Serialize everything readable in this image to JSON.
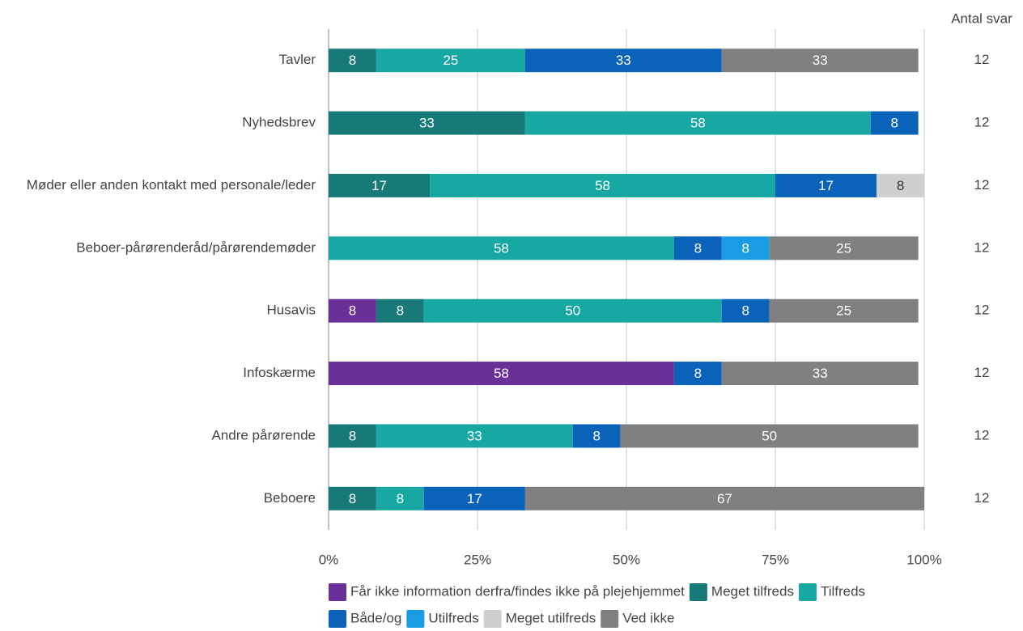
{
  "chart_data": {
    "type": "stacked_barh",
    "categories": [
      "Tavler",
      "Nyhedsbrev",
      "Møder eller anden kontakt med personale/leder",
      "Beboer-pårørenderåd/pårørendemøder",
      "Husavis",
      "Infoskærme",
      "Andre pårørende",
      "Beboere"
    ],
    "series": [
      {
        "name": "Får ikke information derfra/findes ikke på plejehjemmet",
        "color": "#6b2f98",
        "label_color": "#ffffff",
        "values": [
          null,
          null,
          null,
          null,
          8,
          58,
          null,
          null
        ]
      },
      {
        "name": "Meget tilfreds",
        "color": "#177a78",
        "label_color": "#ffffff",
        "values": [
          8,
          33,
          17,
          null,
          8,
          null,
          8,
          8
        ]
      },
      {
        "name": "Tilfreds",
        "color": "#17a8a3",
        "label_color": "#ffffff",
        "values": [
          25,
          58,
          58,
          58,
          50,
          null,
          33,
          8
        ]
      },
      {
        "name": "Både/og",
        "color": "#0b63b9",
        "label_color": "#ffffff",
        "values": [
          33,
          8,
          17,
          8,
          8,
          8,
          8,
          17
        ]
      },
      {
        "name": "Utilfreds",
        "color": "#1a9ce2",
        "label_color": "#ffffff",
        "values": [
          null,
          null,
          null,
          8,
          null,
          null,
          null,
          null
        ]
      },
      {
        "name": "Meget utilfreds",
        "color": "#cfcfcf",
        "label_color": "#333333",
        "values": [
          null,
          null,
          8,
          null,
          null,
          null,
          null,
          null
        ]
      },
      {
        "name": "Ved ikke",
        "color": "#808080",
        "label_color": "#ffffff",
        "values": [
          33,
          null,
          null,
          25,
          25,
          33,
          50,
          67
        ]
      }
    ],
    "xlim": [
      0,
      100
    ],
    "xticks": [
      {
        "value": 0,
        "label": "0%"
      },
      {
        "value": 25,
        "label": "25%"
      },
      {
        "value": 50,
        "label": "50%"
      },
      {
        "value": 75,
        "label": "75%"
      },
      {
        "value": 100,
        "label": "100%"
      }
    ],
    "grid": true,
    "counts_title": "Antal svar",
    "counts": [
      12,
      12,
      12,
      12,
      12,
      12,
      12,
      12
    ],
    "legend": "bottom"
  }
}
